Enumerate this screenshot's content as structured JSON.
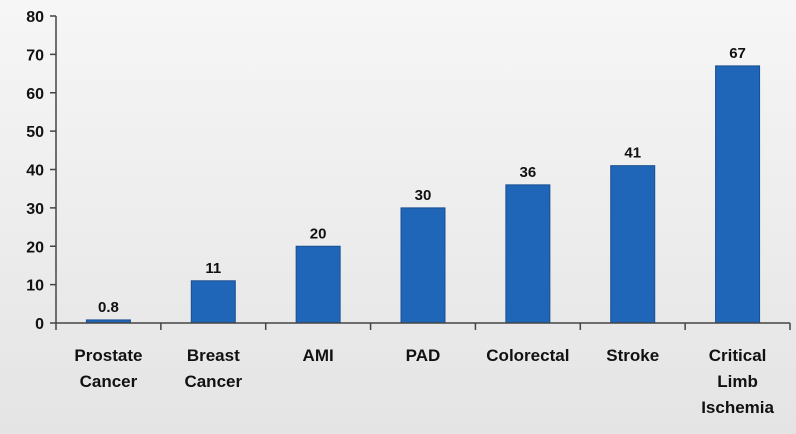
{
  "chart_data": {
    "type": "bar",
    "categories": [
      [
        "Prostate",
        "Cancer"
      ],
      [
        "Breast",
        "Cancer"
      ],
      [
        "AMI"
      ],
      [
        "PAD"
      ],
      [
        "Colorectal"
      ],
      [
        "Stroke"
      ],
      [
        "Critical",
        "Limb",
        "Ischemia"
      ]
    ],
    "values": [
      0.8,
      11,
      20,
      30,
      36,
      41,
      67
    ],
    "data_labels": [
      "0.8",
      "11",
      "20",
      "30",
      "36",
      "41",
      "67"
    ],
    "yticks": [
      "0",
      "10",
      "20",
      "30",
      "40",
      "50",
      "60",
      "70",
      "80"
    ],
    "ylim": [
      0,
      80
    ],
    "grid": false,
    "legend": "none",
    "bar_color": "#1f66b8",
    "bar_edge_color": "#1b4f8f",
    "axis_color": "#444444"
  }
}
